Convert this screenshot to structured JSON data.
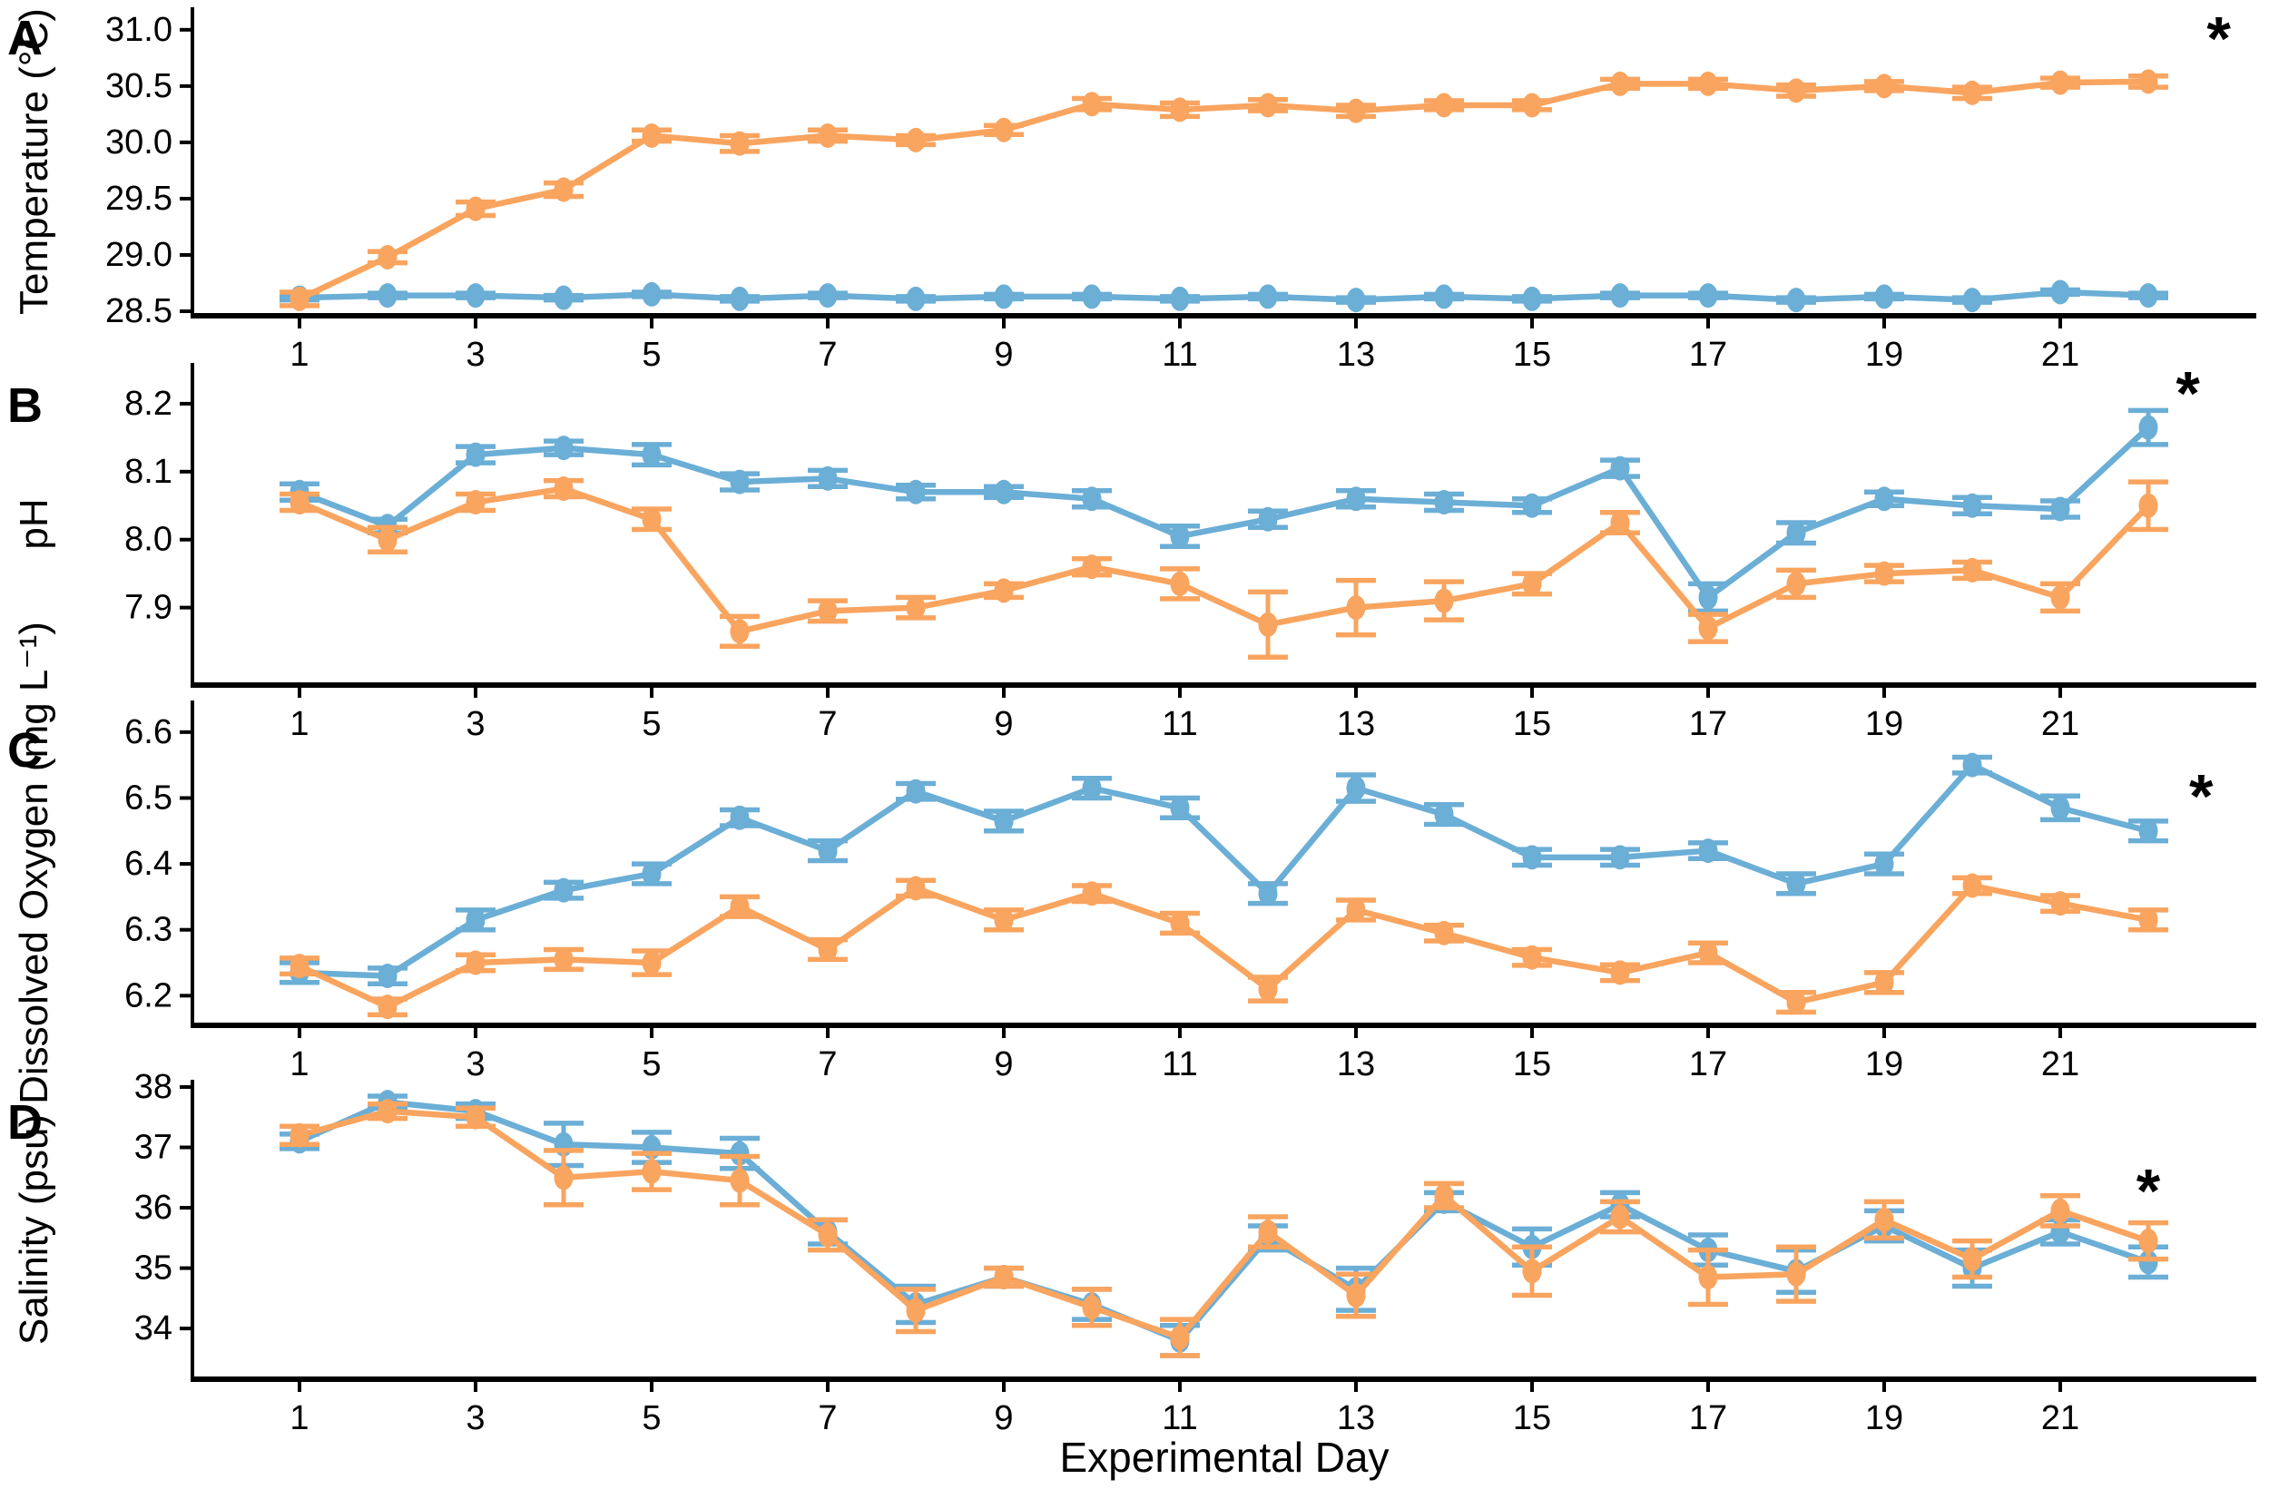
{
  "figure": {
    "xlabel": "Experimental Day",
    "panel_labels": [
      "A",
      "B",
      "C",
      "D"
    ],
    "significance_marker": "*",
    "colors": {
      "series_blue": "#6BAED6",
      "series_orange": "#F9A45F",
      "axis": "#000000",
      "background": "#FFFFFF"
    }
  },
  "chart_data": [
    {
      "type": "line",
      "panel": "A",
      "ylabel": "Temperature (°C)",
      "xlabel": "",
      "x": [
        1,
        2,
        3,
        4,
        5,
        6,
        7,
        8,
        9,
        10,
        11,
        12,
        13,
        14,
        15,
        16,
        17,
        18,
        19,
        20,
        21,
        22
      ],
      "x_tick_labels": [
        "1",
        "3",
        "5",
        "7",
        "9",
        "11",
        "13",
        "15",
        "17",
        "19",
        "21"
      ],
      "yticks": [
        "31.0",
        "30.5",
        "30.0",
        "29.5",
        "29.0",
        "28.5"
      ],
      "ylim": [
        28.46,
        31.2
      ],
      "grid": false,
      "legend": "none",
      "error_bars": true,
      "annotation": {
        "text": "*",
        "day": 22.8,
        "value": 30.92
      },
      "series": [
        {
          "name": "blue",
          "color": "#6BAED6",
          "values": [
            28.62,
            28.64,
            28.64,
            28.62,
            28.65,
            28.61,
            28.64,
            28.61,
            28.63,
            28.63,
            28.61,
            28.63,
            28.6,
            28.63,
            28.61,
            28.64,
            28.64,
            28.6,
            28.63,
            28.6,
            28.67,
            28.64
          ],
          "error": [
            0.02,
            0.02,
            0.02,
            0.02,
            0.02,
            0.02,
            0.02,
            0.02,
            0.02,
            0.02,
            0.02,
            0.02,
            0.02,
            0.02,
            0.02,
            0.02,
            0.02,
            0.02,
            0.02,
            0.02,
            0.02,
            0.02
          ]
        },
        {
          "name": "orange",
          "color": "#F9A45F",
          "values": [
            28.61,
            28.98,
            29.41,
            29.58,
            30.06,
            29.99,
            30.06,
            30.02,
            30.11,
            30.34,
            30.29,
            30.33,
            30.28,
            30.33,
            30.33,
            30.52,
            30.52,
            30.46,
            30.5,
            30.44,
            30.53,
            30.54
          ],
          "error": [
            0.06,
            0.05,
            0.06,
            0.06,
            0.05,
            0.07,
            0.05,
            0.04,
            0.04,
            0.05,
            0.06,
            0.05,
            0.05,
            0.04,
            0.04,
            0.04,
            0.04,
            0.05,
            0.04,
            0.05,
            0.04,
            0.05
          ]
        }
      ]
    },
    {
      "type": "line",
      "panel": "B",
      "ylabel": "pH",
      "xlabel": "",
      "x": [
        1,
        2,
        3,
        4,
        5,
        6,
        7,
        8,
        9,
        10,
        11,
        12,
        13,
        14,
        15,
        16,
        17,
        18,
        19,
        20,
        21,
        22
      ],
      "x_tick_labels": [
        "1",
        "3",
        "5",
        "7",
        "9",
        "11",
        "13",
        "15",
        "17",
        "19",
        "21"
      ],
      "yticks": [
        "8.2",
        "8.1",
        "8.0",
        "7.9"
      ],
      "ylim": [
        7.786,
        8.26
      ],
      "grid": false,
      "legend": "none",
      "error_bars": true,
      "annotation": {
        "text": "*",
        "day": 22.45,
        "value": 8.215
      },
      "series": [
        {
          "name": "blue",
          "color": "#6BAED6",
          "values": [
            8.07,
            8.02,
            8.125,
            8.135,
            8.125,
            8.085,
            8.09,
            8.07,
            8.07,
            8.06,
            8.005,
            8.03,
            8.06,
            8.055,
            8.05,
            8.105,
            7.915,
            8.01,
            8.06,
            8.05,
            8.045,
            8.165
          ],
          "error": [
            0.012,
            0.01,
            0.012,
            0.01,
            0.015,
            0.012,
            0.012,
            0.01,
            0.008,
            0.012,
            0.015,
            0.012,
            0.012,
            0.012,
            0.01,
            0.012,
            0.02,
            0.015,
            0.01,
            0.012,
            0.012,
            0.025
          ]
        },
        {
          "name": "orange",
          "color": "#F9A45F",
          "values": [
            8.055,
            8.0,
            8.055,
            8.075,
            8.03,
            7.865,
            7.895,
            7.9,
            7.925,
            7.96,
            7.935,
            7.875,
            7.9,
            7.91,
            7.935,
            8.025,
            7.87,
            7.935,
            7.95,
            7.955,
            7.915,
            8.05
          ],
          "error": [
            0.012,
            0.018,
            0.012,
            0.012,
            0.015,
            0.022,
            0.015,
            0.015,
            0.01,
            0.012,
            0.022,
            0.048,
            0.04,
            0.028,
            0.015,
            0.015,
            0.02,
            0.02,
            0.012,
            0.012,
            0.02,
            0.035
          ]
        }
      ]
    },
    {
      "type": "line",
      "panel": "C",
      "ylabel": "Dissolved Oxygen (mg L⁻¹)",
      "xlabel": "",
      "x": [
        1,
        2,
        3,
        4,
        5,
        6,
        7,
        8,
        9,
        10,
        11,
        12,
        13,
        14,
        15,
        16,
        17,
        18,
        19,
        20,
        21,
        22
      ],
      "x_tick_labels": [
        "1",
        "3",
        "5",
        "7",
        "9",
        "11",
        "13",
        "15",
        "17",
        "19",
        "21"
      ],
      "yticks": [
        "6.6",
        "6.5",
        "6.4",
        "6.3",
        "6.2"
      ],
      "ylim": [
        6.155,
        6.648
      ],
      "grid": false,
      "legend": "none",
      "error_bars": true,
      "annotation": {
        "text": "*",
        "day": 22.6,
        "value": 6.503
      },
      "series": [
        {
          "name": "blue",
          "color": "#6BAED6",
          "values": [
            6.235,
            6.23,
            6.315,
            6.36,
            6.385,
            6.47,
            6.42,
            6.51,
            6.465,
            6.515,
            6.485,
            6.355,
            6.515,
            6.475,
            6.41,
            6.41,
            6.42,
            6.37,
            6.4,
            6.55,
            6.485,
            6.45
          ],
          "error": [
            0.015,
            0.012,
            0.015,
            0.012,
            0.015,
            0.012,
            0.015,
            0.012,
            0.015,
            0.015,
            0.015,
            0.015,
            0.02,
            0.015,
            0.012,
            0.012,
            0.012,
            0.015,
            0.015,
            0.012,
            0.018,
            0.015
          ]
        },
        {
          "name": "orange",
          "color": "#F9A45F",
          "values": [
            6.245,
            6.183,
            6.25,
            6.255,
            6.25,
            6.335,
            6.27,
            6.363,
            6.315,
            6.355,
            6.31,
            6.21,
            6.33,
            6.295,
            6.258,
            6.235,
            6.265,
            6.19,
            6.22,
            6.367,
            6.34,
            6.315
          ],
          "error": [
            0.012,
            0.012,
            0.012,
            0.015,
            0.018,
            0.015,
            0.015,
            0.012,
            0.015,
            0.012,
            0.015,
            0.018,
            0.015,
            0.012,
            0.012,
            0.012,
            0.015,
            0.015,
            0.015,
            0.012,
            0.012,
            0.015
          ]
        }
      ]
    },
    {
      "type": "line",
      "panel": "D",
      "ylabel": "Salinity (psu)",
      "xlabel": "Experimental Day",
      "x": [
        1,
        2,
        3,
        4,
        5,
        6,
        7,
        8,
        9,
        10,
        11,
        12,
        13,
        14,
        15,
        16,
        17,
        18,
        19,
        20,
        21,
        22
      ],
      "x_tick_labels": [
        "1",
        "3",
        "5",
        "7",
        "9",
        "11",
        "13",
        "15",
        "17",
        "19",
        "21"
      ],
      "yticks": [
        "38",
        "37",
        "36",
        "35",
        "34"
      ],
      "ylim": [
        33.16,
        38.12
      ],
      "grid": false,
      "legend": "none",
      "error_bars": true,
      "annotation": {
        "text": "*",
        "day": 22.0,
        "value": 36.28
      },
      "series": [
        {
          "name": "blue",
          "color": "#6BAED6",
          "values": [
            37.1,
            37.75,
            37.6,
            37.05,
            37.0,
            36.9,
            35.6,
            34.4,
            34.85,
            34.4,
            33.8,
            35.5,
            34.65,
            36.1,
            35.35,
            36.05,
            35.3,
            34.95,
            35.7,
            35.0,
            35.6,
            35.1
          ],
          "error": [
            0.12,
            0.1,
            0.12,
            0.35,
            0.25,
            0.25,
            0.2,
            0.3,
            0.15,
            0.25,
            0.25,
            0.2,
            0.35,
            0.15,
            0.3,
            0.2,
            0.25,
            0.35,
            0.25,
            0.3,
            0.2,
            0.25
          ]
        },
        {
          "name": "orange",
          "color": "#F9A45F",
          "values": [
            37.2,
            37.6,
            37.5,
            36.5,
            36.6,
            36.45,
            35.55,
            34.3,
            34.85,
            34.35,
            33.85,
            35.6,
            34.55,
            36.2,
            34.95,
            35.85,
            34.85,
            34.9,
            35.8,
            35.15,
            35.95,
            35.45
          ],
          "error": [
            0.15,
            0.12,
            0.15,
            0.45,
            0.3,
            0.4,
            0.25,
            0.35,
            0.15,
            0.3,
            0.3,
            0.25,
            0.35,
            0.2,
            0.4,
            0.25,
            0.45,
            0.45,
            0.3,
            0.3,
            0.25,
            0.3
          ]
        }
      ]
    }
  ]
}
